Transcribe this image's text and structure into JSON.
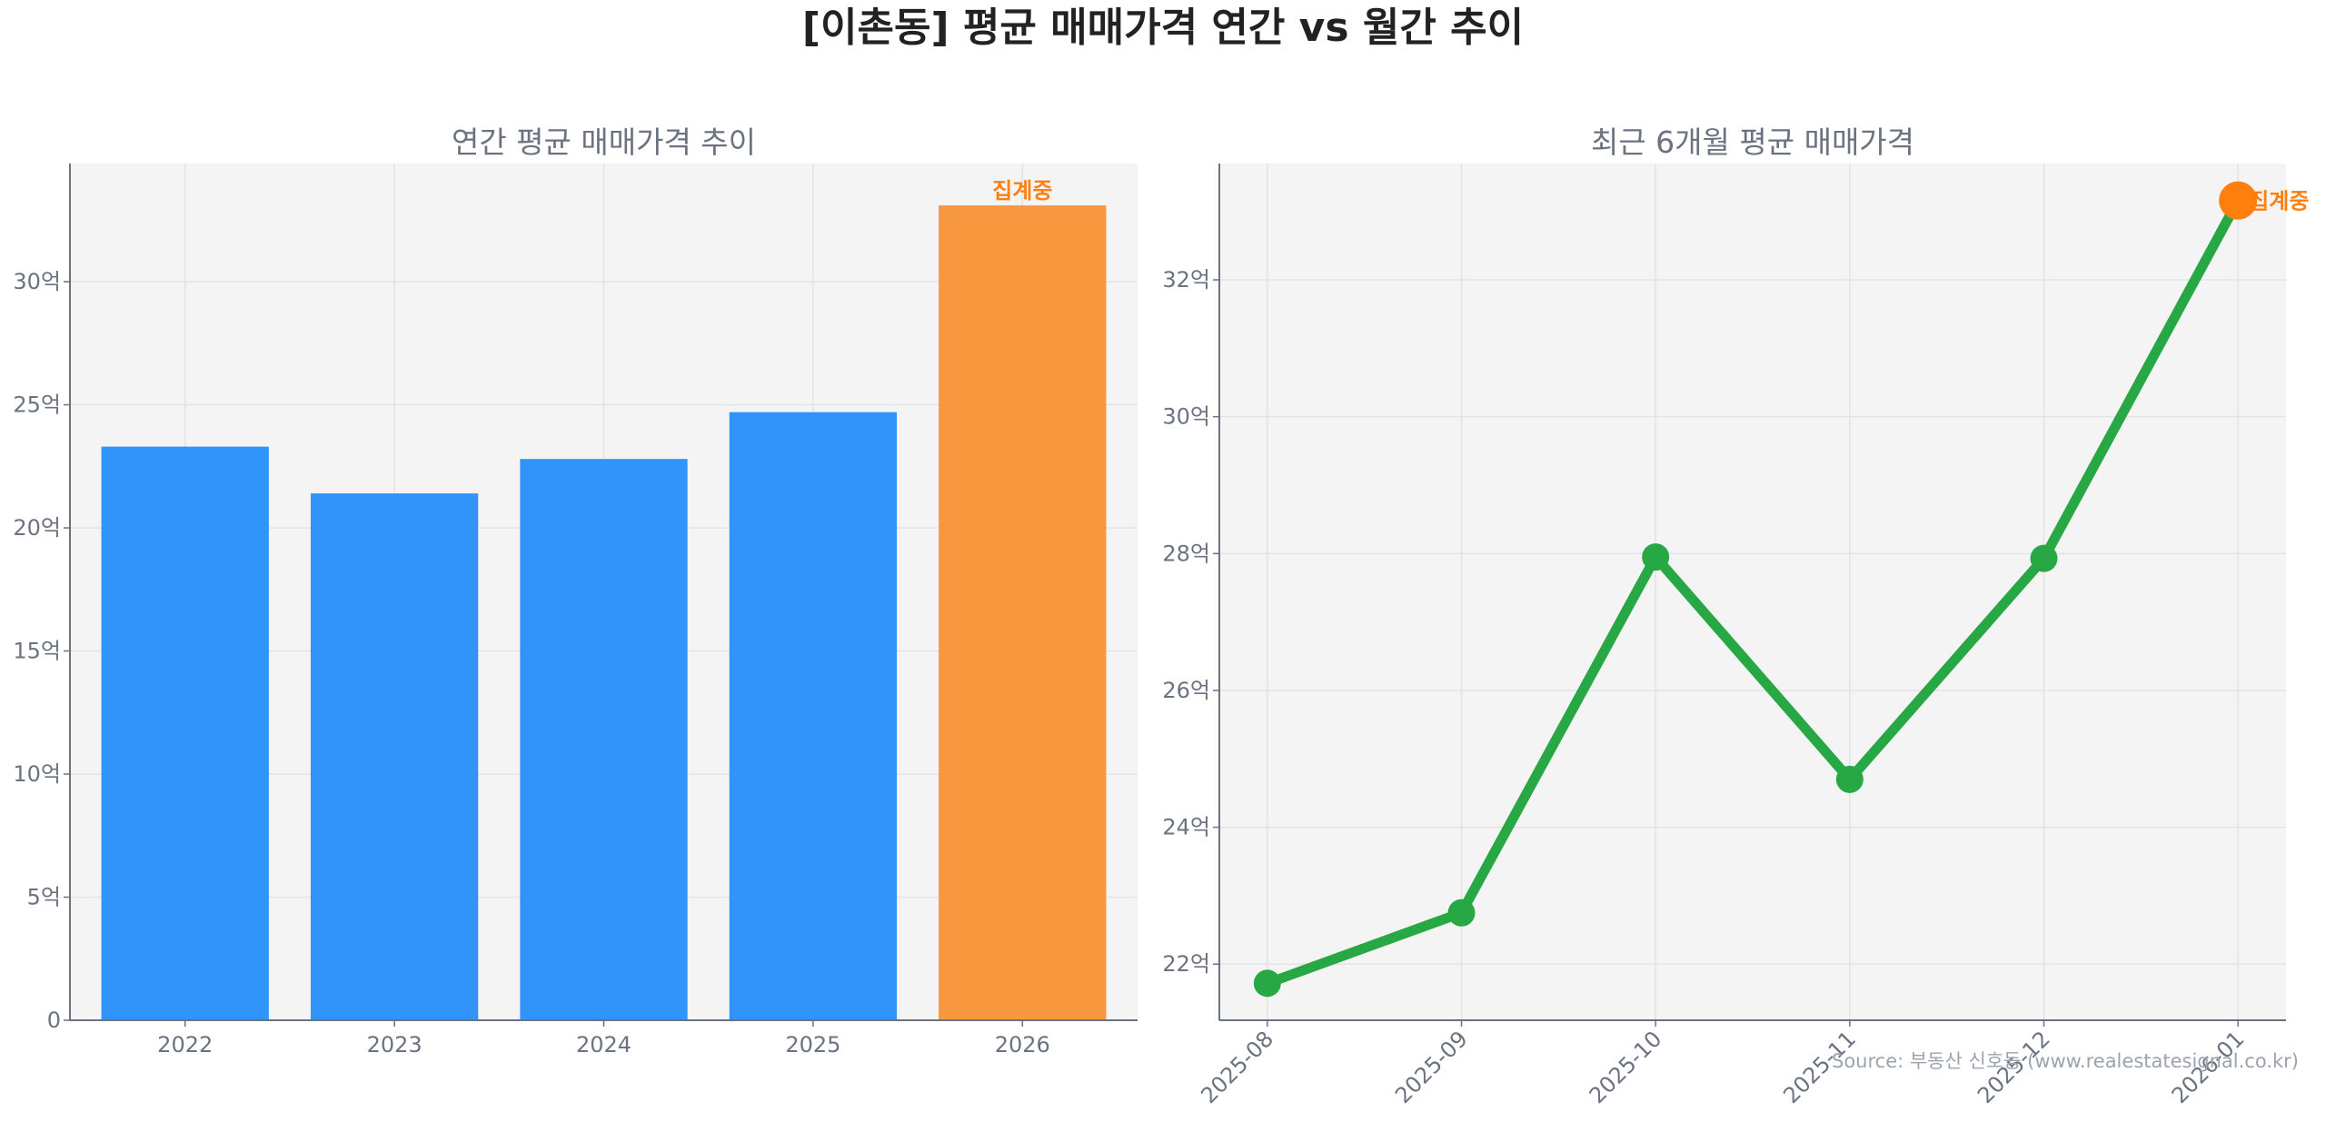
{
  "title": "[이촌동] 평균 매매가격 연간 vs 월간 추이",
  "source": "Source: 부동산 신호등 (www.realestatesignal.co.kr)",
  "colors": {
    "bar": "#3194fa",
    "bar_partial": "#f9973f",
    "line": "#27a844",
    "partial_marker": "#ff7f0e",
    "plot_bg": "#f4f4f4"
  },
  "chart_data": [
    {
      "type": "bar",
      "title": "연간 평균 매매가격 추이",
      "categories": [
        "2022",
        "2023",
        "2024",
        "2025",
        "2026"
      ],
      "values": [
        23.3,
        21.4,
        22.8,
        24.7,
        33.1
      ],
      "partial_annotation": {
        "category": "2026",
        "text": "집계중"
      },
      "ylim": [
        0,
        34.8
      ],
      "yticks": [
        0,
        5,
        10,
        15,
        20,
        25,
        30
      ],
      "ytick_labels": [
        "0",
        "5억",
        "10억",
        "15억",
        "20억",
        "25억",
        "30억"
      ],
      "grid": true
    },
    {
      "type": "line",
      "title": "최근 6개월 평균 매매가격",
      "categories": [
        "2025-08",
        "2025-09",
        "2025-10",
        "2025-11",
        "2025-12",
        "2026-01"
      ],
      "values": [
        21.72,
        22.75,
        27.95,
        24.7,
        27.93,
        33.16
      ],
      "partial_annotation": {
        "category": "2026-01",
        "text": "집계중"
      },
      "ylim": [
        21.18,
        33.7
      ],
      "yticks": [
        22,
        24,
        26,
        28,
        30,
        32
      ],
      "ytick_labels": [
        "22억",
        "24억",
        "26억",
        "28억",
        "30억",
        "32억"
      ],
      "grid": true
    }
  ]
}
